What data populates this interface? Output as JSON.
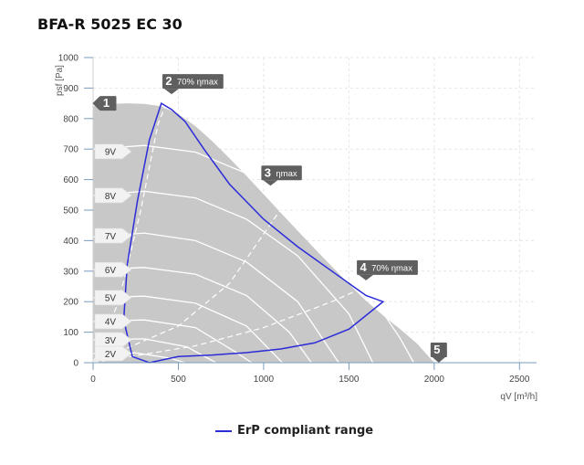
{
  "page": {
    "title": "BFA-R 5025 EC 30"
  },
  "chart_data": {
    "type": "line",
    "title": "BFA-R 5025 EC 30",
    "xlabel": "qV [m³/h]",
    "ylabel": "psf [Pa]",
    "xlim": [
      0,
      2600
    ],
    "ylim": [
      0,
      1000
    ],
    "x_ticks": [
      0,
      500,
      1000,
      1500,
      2000,
      2500
    ],
    "y_ticks": [
      0,
      100,
      200,
      300,
      400,
      500,
      600,
      700,
      800,
      900,
      1000
    ],
    "grid": true,
    "colors": {
      "envelope": "#c8c8c8",
      "curve": "#ffffff",
      "erp": "#2b2bd8",
      "marker": "#5f5f5f"
    },
    "envelope": [
      [
        0,
        840
      ],
      [
        100,
        848
      ],
      [
        200,
        850
      ],
      [
        300,
        848
      ],
      [
        400,
        840
      ],
      [
        500,
        815
      ],
      [
        600,
        775
      ],
      [
        700,
        725
      ],
      [
        800,
        670
      ],
      [
        900,
        612
      ],
      [
        1000,
        552
      ],
      [
        1100,
        492
      ],
      [
        1200,
        432
      ],
      [
        1300,
        373
      ],
      [
        1400,
        315
      ],
      [
        1500,
        258
      ],
      [
        1600,
        203
      ],
      [
        1700,
        155
      ],
      [
        1800,
        110
      ],
      [
        1900,
        62
      ],
      [
        2000,
        0
      ]
    ],
    "voltage_curves": [
      {
        "label": "9V",
        "points": [
          [
            0,
            700
          ],
          [
            300,
            712
          ],
          [
            600,
            690
          ],
          [
            900,
            620
          ],
          [
            1200,
            500
          ],
          [
            1500,
            330
          ],
          [
            1800,
            80
          ],
          [
            1880,
            0
          ]
        ]
      },
      {
        "label": "8V",
        "points": [
          [
            0,
            548
          ],
          [
            300,
            562
          ],
          [
            600,
            540
          ],
          [
            900,
            470
          ],
          [
            1200,
            350
          ],
          [
            1500,
            160
          ],
          [
            1640,
            0
          ]
        ]
      },
      {
        "label": "7V",
        "points": [
          [
            0,
            412
          ],
          [
            300,
            425
          ],
          [
            600,
            400
          ],
          [
            900,
            330
          ],
          [
            1200,
            200
          ],
          [
            1440,
            0
          ]
        ]
      },
      {
        "label": "6V",
        "points": [
          [
            0,
            305
          ],
          [
            300,
            312
          ],
          [
            600,
            290
          ],
          [
            900,
            220
          ],
          [
            1150,
            100
          ],
          [
            1280,
            0
          ]
        ]
      },
      {
        "label": "5V",
        "points": [
          [
            0,
            213
          ],
          [
            300,
            218
          ],
          [
            600,
            195
          ],
          [
            900,
            120
          ],
          [
            1110,
            0
          ]
        ]
      },
      {
        "label": "4V",
        "points": [
          [
            0,
            135
          ],
          [
            300,
            140
          ],
          [
            600,
            115
          ],
          [
            820,
            40
          ],
          [
            930,
            0
          ]
        ]
      },
      {
        "label": "3V",
        "points": [
          [
            0,
            75
          ],
          [
            300,
            78
          ],
          [
            550,
            52
          ],
          [
            720,
            0
          ]
        ]
      },
      {
        "label": "2V",
        "points": [
          [
            0,
            30
          ],
          [
            250,
            32
          ],
          [
            450,
            15
          ],
          [
            540,
            0
          ]
        ]
      }
    ],
    "efficiency_lines": [
      {
        "points": [
          [
            0,
            0
          ],
          [
            150,
            200
          ],
          [
            280,
            500
          ],
          [
            380,
            780
          ],
          [
            450,
            880
          ]
        ]
      },
      {
        "points": [
          [
            0,
            0
          ],
          [
            500,
            120
          ],
          [
            800,
            260
          ],
          [
            1060,
            470
          ],
          [
            1300,
            660
          ]
        ]
      },
      {
        "points": [
          [
            0,
            0
          ],
          [
            600,
            55
          ],
          [
            1000,
            115
          ],
          [
            1400,
            200
          ],
          [
            1800,
            300
          ]
        ]
      }
    ],
    "erp_boundary": [
      [
        230,
        20
      ],
      [
        180,
        140
      ],
      [
        200,
        320
      ],
      [
        260,
        530
      ],
      [
        330,
        730
      ],
      [
        400,
        850
      ],
      [
        460,
        830
      ],
      [
        540,
        790
      ],
      [
        650,
        700
      ],
      [
        800,
        585
      ],
      [
        1000,
        470
      ],
      [
        1200,
        380
      ],
      [
        1400,
        300
      ],
      [
        1600,
        220
      ],
      [
        1700,
        200
      ],
      [
        1500,
        110
      ],
      [
        1300,
        65
      ],
      [
        1100,
        45
      ],
      [
        900,
        33
      ],
      [
        700,
        25
      ],
      [
        500,
        20
      ],
      [
        330,
        0
      ],
      [
        230,
        20
      ]
    ],
    "markers": [
      {
        "id": "1",
        "label": "1",
        "x": 40,
        "y": 850,
        "pointer": "left"
      },
      {
        "id": "2",
        "label": "2",
        "sub": "70% ηmax",
        "x": 460,
        "y": 880,
        "pointer": "down"
      },
      {
        "id": "3",
        "label": "3",
        "sub": "ηmax",
        "x": 1040,
        "y": 580,
        "pointer": "down"
      },
      {
        "id": "4",
        "label": "4",
        "sub": "70% ηmax",
        "x": 1600,
        "y": 270,
        "pointer": "down"
      },
      {
        "id": "5",
        "label": "5",
        "x": 2000,
        "y": 0,
        "pointer": "up"
      }
    ],
    "voltage_labels": [
      {
        "label": "9V",
        "y": 692
      },
      {
        "label": "8V",
        "y": 548
      },
      {
        "label": "7V",
        "y": 416
      },
      {
        "label": "6V",
        "y": 305
      },
      {
        "label": "5V",
        "y": 213
      },
      {
        "label": "4V",
        "y": 135
      },
      {
        "label": "3V",
        "y": 75
      },
      {
        "label": "2V",
        "y": 30
      }
    ],
    "legend": {
      "placement": "bottom-center",
      "items": [
        {
          "label": "ErP compliant range",
          "color": "#2b2bd8"
        }
      ]
    }
  }
}
